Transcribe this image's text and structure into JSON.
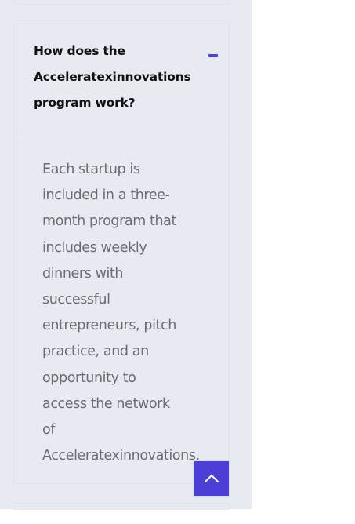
{
  "faq": {
    "question": "How does the Acceleratexinnovations program work?",
    "answer": "Each startup is included in a three-month program that includes weekly dinners with successful entrepreneurs, pitch practice, and an opportunity to access the network of Acceleratexinnovations.",
    "toggle_icon": "minus-icon",
    "expanded": true
  },
  "back_to_top": {
    "icon": "chevron-up-icon"
  },
  "colors": {
    "panel_background": "#e8eaf2",
    "accent": "#4b3fd7",
    "question_text": "#111111",
    "answer_text": "#6b6b73"
  }
}
